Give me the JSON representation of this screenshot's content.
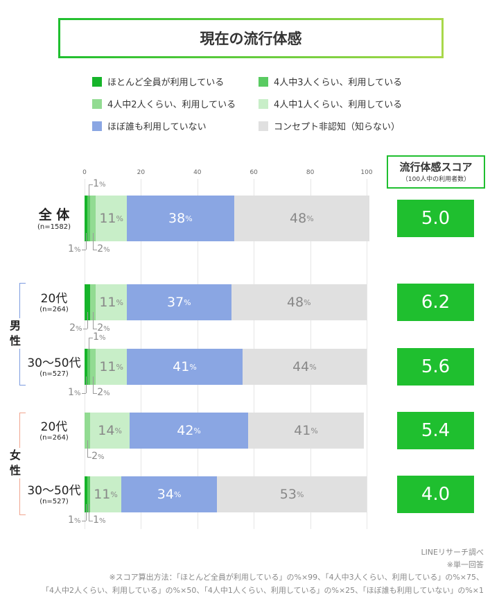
{
  "title": "現在の流行体感",
  "legend": [
    "ほとんど全員が利用している",
    "4人中3人くらい、利用している",
    "4人中2人くらい、利用している",
    "4人中1人くらい、利用している",
    "ほぼ誰も利用していない",
    "コンセプト非認知（知らない）"
  ],
  "colors": [
    "#16b42a",
    "#5acb62",
    "#92db92",
    "#c8eec8",
    "#8aa6e3",
    "#e0e0e0"
  ],
  "score_header": {
    "title": "流行体感スコア",
    "sub": "（100人中の利用者数）"
  },
  "groups": [
    {
      "label": "男\n性",
      "color": "#7c9be0"
    },
    {
      "label": "女\n性",
      "color": "#f0a48e"
    }
  ],
  "chart_data": {
    "type": "bar",
    "orientation": "horizontal",
    "stacked": true,
    "xlim": [
      0,
      100
    ],
    "xticks": [
      "0",
      "20",
      "40",
      "60",
      "80",
      "100"
    ],
    "series_names": [
      "ほとんど全員が利用している",
      "4人中3人くらい、利用している",
      "4人中2人くらい、利用している",
      "4人中1人くらい、利用している",
      "ほぼ誰も利用していない",
      "コンセプト非認知（知らない）"
    ],
    "categories": [
      {
        "label": "全 体",
        "n": "(n=1582)",
        "values": [
          1,
          1,
          2,
          11,
          38,
          48
        ],
        "score": "5.0"
      },
      {
        "label": "20代",
        "n": "(n=264)",
        "values": [
          2,
          0,
          2,
          11,
          37,
          48
        ],
        "score": "6.2"
      },
      {
        "label": "30〜50代",
        "n": "(n=527)",
        "values": [
          1,
          1,
          2,
          11,
          41,
          44
        ],
        "score": "5.6"
      },
      {
        "label": "20代",
        "n": "(n=264)",
        "values": [
          0,
          0,
          2,
          14,
          42,
          41
        ],
        "score": "5.4"
      },
      {
        "label": "30〜50代",
        "n": "(n=527)",
        "values": [
          1,
          1,
          0,
          11,
          34,
          53
        ],
        "score": "4.0"
      }
    ],
    "unit": "%"
  },
  "footer": [
    "LINEリサーチ調べ",
    "※単一回答",
    "※スコア算出方法：「ほとんど全員が利用している」の%×99、「4人中3人くらい、利用している」の%×75、",
    "「4人中2人くらい、利用している」の%×50、「4人中1人くらい、利用している」の%×25、「ほぼ誰も利用していない」の%×1"
  ]
}
